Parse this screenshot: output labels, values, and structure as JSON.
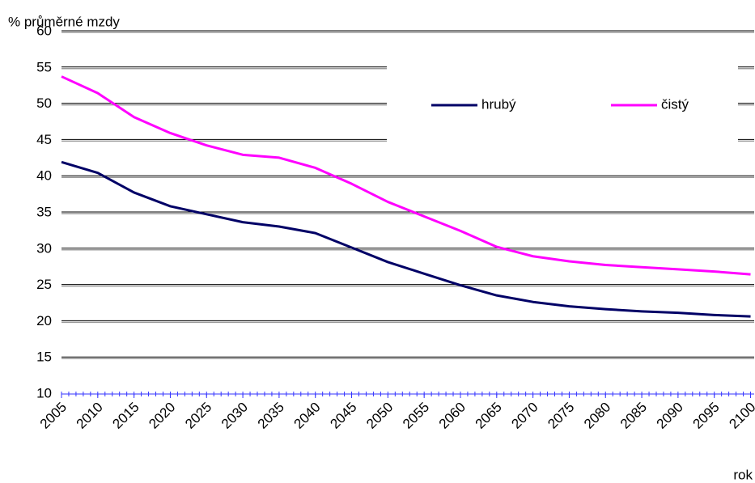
{
  "chart_data": {
    "type": "line",
    "ylabel": "% průměrné mzdy",
    "xlabel": "rok",
    "x": [
      2005,
      2010,
      2015,
      2020,
      2025,
      2030,
      2035,
      2040,
      2045,
      2050,
      2055,
      2060,
      2065,
      2070,
      2075,
      2080,
      2085,
      2090,
      2095,
      2100
    ],
    "series": [
      {
        "name": "hrubý",
        "color": "#000066",
        "values": [
          42,
          40.5,
          37.8,
          35.9,
          34.8,
          33.7,
          33.1,
          32.2,
          30.2,
          28.2,
          26.6,
          25.0,
          23.6,
          22.7,
          22.1,
          21.7,
          21.4,
          21.2,
          20.9,
          20.7
        ]
      },
      {
        "name": "čistý",
        "color": "#ff00ff",
        "values": [
          53.8,
          51.5,
          48.2,
          46.0,
          44.3,
          43.0,
          42.6,
          41.2,
          39.0,
          36.5,
          34.5,
          32.5,
          30.3,
          29.0,
          28.3,
          27.8,
          27.5,
          27.2,
          26.9,
          26.5
        ]
      }
    ],
    "xlim": [
      2005,
      2100.5
    ],
    "xticks": [
      2005,
      2010,
      2015,
      2020,
      2025,
      2030,
      2035,
      2040,
      2045,
      2050,
      2055,
      2060,
      2065,
      2070,
      2075,
      2080,
      2085,
      2090,
      2095,
      2100
    ],
    "ylim": [
      10,
      60
    ],
    "yticks": [
      10,
      15,
      20,
      25,
      30,
      35,
      40,
      45,
      50,
      55,
      60
    ],
    "grid": true,
    "legend": "top-right"
  }
}
